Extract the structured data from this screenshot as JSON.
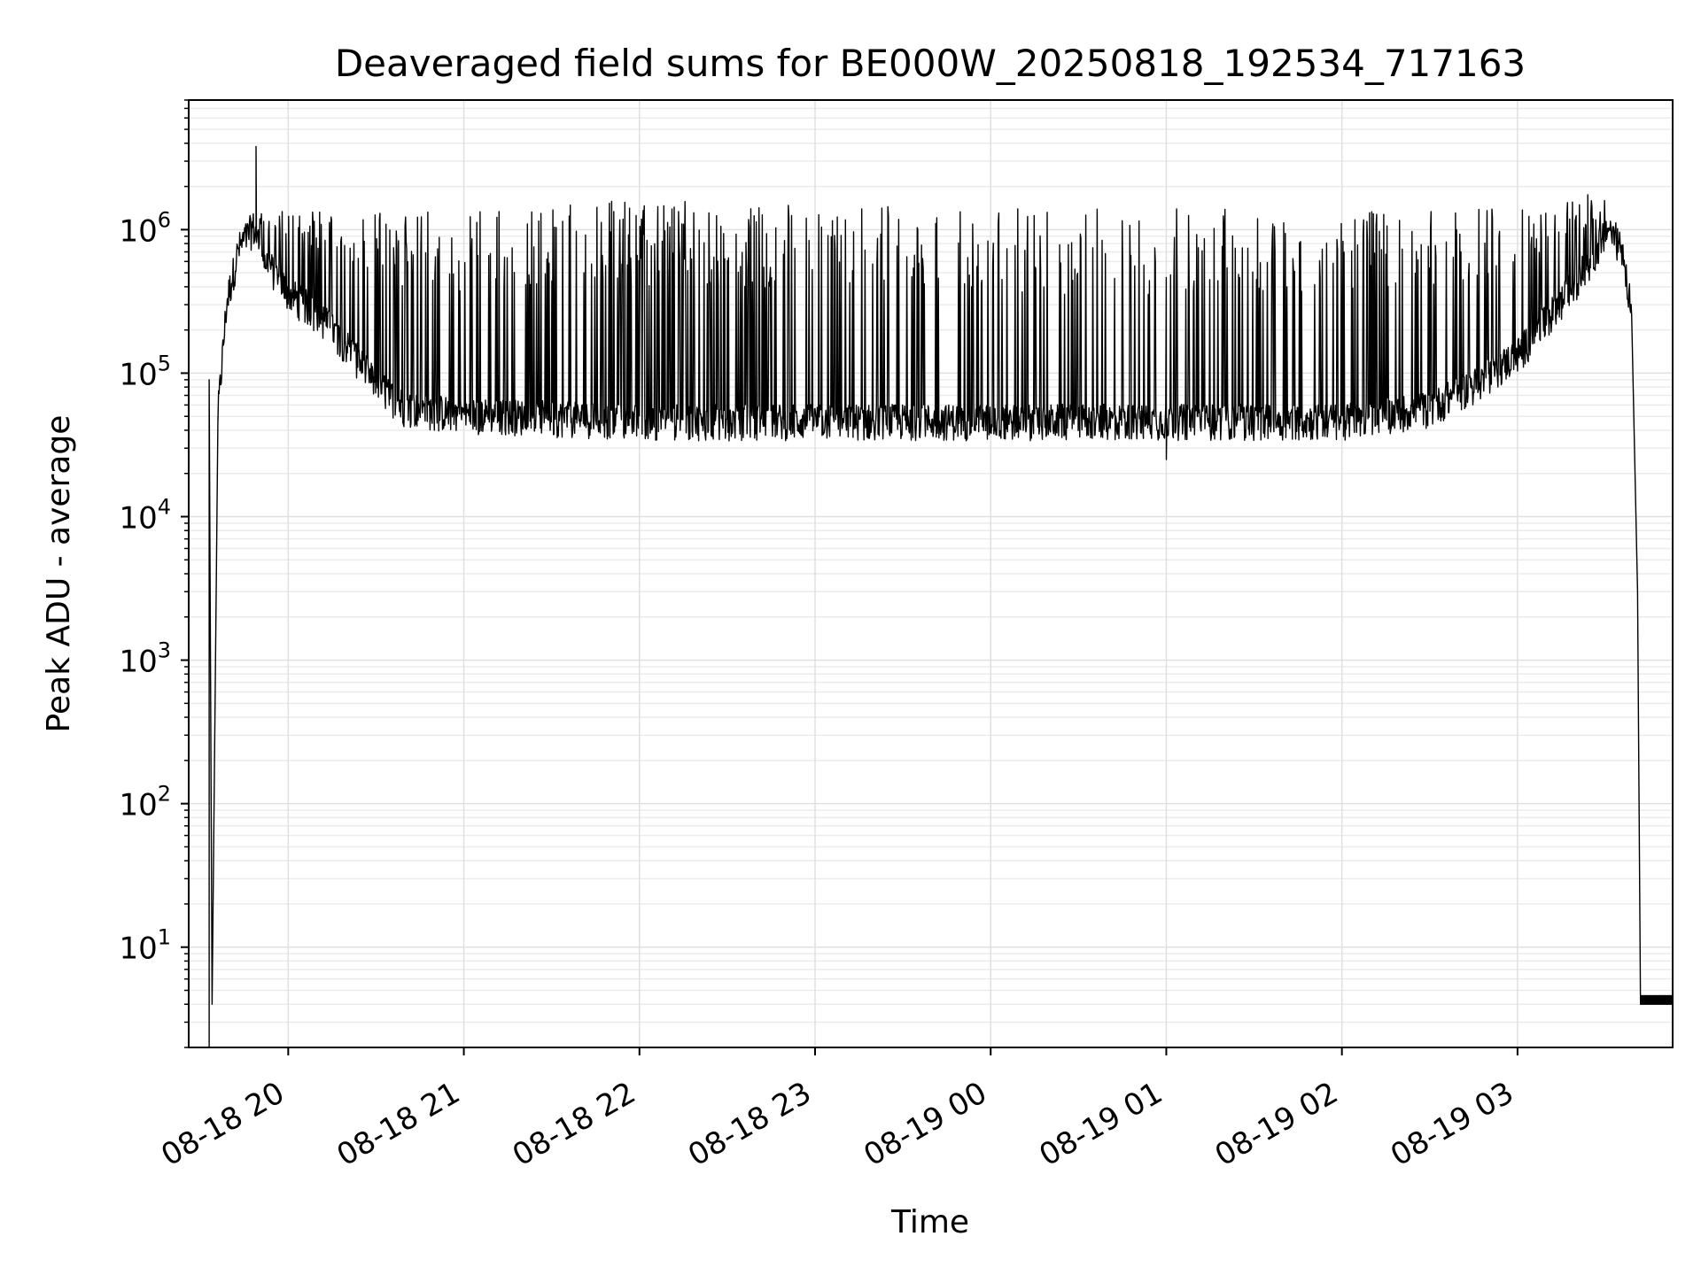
{
  "chart_data": {
    "type": "line",
    "title": "Deaveraged field sums for BE000W_20250818_192534_717163",
    "xlabel": "Time",
    "ylabel": "Peak ADU - average",
    "yscale": "log",
    "ylim": [
      2,
      8000000
    ],
    "xlim": [
      "2025-08-18 19:26",
      "2025-08-19 03:53"
    ],
    "grid": true,
    "line_color": "#000000",
    "x_ticks": [
      {
        "label": "08-18 20",
        "time": "2025-08-18 20:00"
      },
      {
        "label": "08-18 21",
        "time": "2025-08-18 21:00"
      },
      {
        "label": "08-18 22",
        "time": "2025-08-18 22:00"
      },
      {
        "label": "08-18 23",
        "time": "2025-08-18 23:00"
      },
      {
        "label": "08-19 00",
        "time": "2025-08-19 00:00"
      },
      {
        "label": "08-19 01",
        "time": "2025-08-19 01:00"
      },
      {
        "label": "08-19 02",
        "time": "2025-08-19 02:00"
      },
      {
        "label": "08-19 03",
        "time": "2025-08-19 03:00"
      }
    ],
    "y_ticks": [
      {
        "base": "10",
        "exp": "1",
        "value": 10
      },
      {
        "base": "10",
        "exp": "2",
        "value": 100
      },
      {
        "base": "10",
        "exp": "3",
        "value": 1000
      },
      {
        "base": "10",
        "exp": "4",
        "value": 10000
      },
      {
        "base": "10",
        "exp": "5",
        "value": 100000
      },
      {
        "base": "10",
        "exp": "6",
        "value": 1000000
      }
    ],
    "series": [
      {
        "baseline": [
          [
            "2025-08-18 19:33",
            2
          ],
          [
            "2025-08-18 19:33",
            90000
          ],
          [
            "2025-08-18 19:34",
            4
          ],
          [
            "2025-08-18 19:36",
            50000
          ],
          [
            "2025-08-18 19:39",
            300000
          ],
          [
            "2025-08-18 19:43",
            700000
          ],
          [
            "2025-08-18 19:48",
            1000000
          ],
          [
            "2025-08-18 19:52",
            600000
          ],
          [
            "2025-08-18 20:00",
            350000
          ],
          [
            "2025-08-18 20:10",
            250000
          ],
          [
            "2025-08-18 20:20",
            150000
          ],
          [
            "2025-08-18 20:30",
            80000
          ],
          [
            "2025-08-18 20:40",
            55000
          ],
          [
            "2025-08-18 21:00",
            50000
          ],
          [
            "2025-08-18 22:00",
            45000
          ],
          [
            "2025-08-18 23:00",
            45000
          ],
          [
            "2025-08-19 00:00",
            45000
          ],
          [
            "2025-08-19 01:00",
            45000
          ],
          [
            "2025-08-19 02:00",
            45000
          ],
          [
            "2025-08-19 02:30",
            55000
          ],
          [
            "2025-08-19 02:45",
            80000
          ],
          [
            "2025-08-19 03:00",
            130000
          ],
          [
            "2025-08-19 03:15",
            300000
          ],
          [
            "2025-08-19 03:25",
            600000
          ],
          [
            "2025-08-19 03:31",
            1000000
          ],
          [
            "2025-08-19 03:36",
            700000
          ],
          [
            "2025-08-19 03:39",
            250000
          ],
          [
            "2025-08-19 03:41",
            3000
          ],
          [
            "2025-08-19 03:42",
            4
          ],
          [
            "2025-08-19 03:53",
            4
          ]
        ],
        "peak_bands": [
          {
            "start": "2025-08-18 19:50",
            "end": "2025-08-18 20:30",
            "peak": 1400000
          },
          {
            "start": "2025-08-18 20:30",
            "end": "2025-08-18 21:20",
            "peak": 1400000
          },
          {
            "start": "2025-08-18 21:20",
            "end": "2025-08-18 22:20",
            "peak": 1600000
          },
          {
            "start": "2025-08-18 22:20",
            "end": "2025-08-19 00:00",
            "peak": 1500000
          },
          {
            "start": "2025-08-19 00:00",
            "end": "2025-08-19 01:30",
            "peak": 1400000
          },
          {
            "start": "2025-08-19 01:30",
            "end": "2025-08-19 03:00",
            "peak": 1400000
          },
          {
            "start": "2025-08-19 03:00",
            "end": "2025-08-19 03:30",
            "peak": 1600000
          }
        ],
        "dips": [
          [
            "2025-08-18 19:49",
            3800000
          ],
          [
            "2025-08-18 21:55",
            1550000
          ],
          [
            "2025-08-19 01:00",
            25000
          ],
          [
            "2025-08-19 03:24",
            1750000
          ]
        ],
        "trough_floor": 30000
      }
    ]
  }
}
